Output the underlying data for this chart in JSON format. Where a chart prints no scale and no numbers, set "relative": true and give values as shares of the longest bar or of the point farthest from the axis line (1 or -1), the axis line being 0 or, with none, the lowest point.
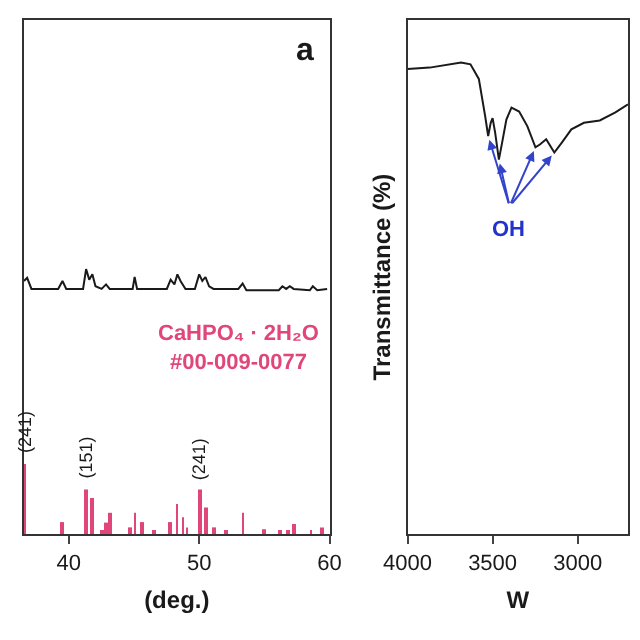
{
  "chart_data": [
    {
      "type": "line",
      "title": "a",
      "xlabel": "(deg.)",
      "relative": true,
      "xlim": [
        36.57,
        60
      ],
      "xticks": [
        40,
        50,
        60
      ],
      "tick_labels": "x",
      "legend": false,
      "series": [
        {
          "type": "line",
          "color": "#1a1a1a",
          "x": [
            36.57,
            36.81,
            37.14,
            39.19,
            39.52,
            39.81,
            41.1,
            41.33,
            41.57,
            41.81,
            42.05,
            42.52,
            42.86,
            43.14,
            44.19,
            44.9,
            45.05,
            45.24,
            47.52,
            47.81,
            48.1,
            48.33,
            48.57,
            48.95,
            49.67,
            50.0,
            50.24,
            50.48,
            50.76,
            51.1,
            53.0,
            53.33,
            53.62,
            56.1,
            56.38,
            56.67,
            56.95,
            57.24,
            58.48,
            58.71,
            59.05,
            59.81
          ],
          "values": [
            0.955,
            0.967,
            0.925,
            0.925,
            0.955,
            0.925,
            0.925,
            1.0,
            0.96,
            0.98,
            0.935,
            0.925,
            0.942,
            0.925,
            0.925,
            0.925,
            0.97,
            0.925,
            0.925,
            0.96,
            0.942,
            0.98,
            0.955,
            0.925,
            0.925,
            0.98,
            0.955,
            0.97,
            0.935,
            0.925,
            0.925,
            0.945,
            0.92,
            0.92,
            0.935,
            0.925,
            0.935,
            0.925,
            0.92,
            0.935,
            0.92,
            0.925
          ]
        },
        {
          "type": "bar",
          "name": "CaHPO₄ · 2H₂O\n#00-009-0077",
          "color": "#e0467a",
          "x": [
            36.57,
            39.52,
            41.33,
            41.81,
            42.52,
            42.86,
            43.14,
            44.67,
            45.05,
            45.62,
            46.57,
            47.76,
            48.29,
            48.76,
            49.05,
            50.05,
            50.52,
            51.1,
            52.05,
            53.33,
            55.0,
            56.19,
            56.81,
            57.29,
            58.57,
            59.43
          ],
          "values": [
            0.264,
            0.045,
            0.168,
            0.136,
            0.013,
            0.043,
            0.08,
            0.025,
            0.08,
            0.045,
            0.013,
            0.045,
            0.113,
            0.063,
            0.025,
            0.168,
            0.1,
            0.025,
            0.013,
            0.08,
            0.018,
            0.013,
            0.013,
            0.038,
            0.013,
            0.025
          ]
        }
      ],
      "annotations": [
        {
          "text": "(241)",
          "x": 36.57,
          "y": 0.264
        },
        {
          "text": "(151)",
          "x": 41.33,
          "y": 0.168
        },
        {
          "text": "(241)",
          "x": 50.05,
          "y": 0.168
        }
      ]
    },
    {
      "type": "line",
      "xlabel": "W",
      "ylabel": "Transmittance (%)",
      "relative": true,
      "xlim": [
        4000,
        2704
      ],
      "xticks": [
        4000,
        3500,
        3000
      ],
      "tick_labels": "x",
      "legend": false,
      "series": [
        {
          "color": "#1a1a1a",
          "x": [
            4000,
            3870,
            3685,
            3630,
            3581,
            3544,
            3526,
            3511,
            3500,
            3485,
            3463,
            3444,
            3419,
            3389,
            3344,
            3296,
            3248,
            3222,
            3185,
            3137,
            3093,
            3037,
            2963,
            2870,
            2778,
            2704
          ],
          "values": [
            0.986,
            0.989,
            1.0,
            0.996,
            0.965,
            0.887,
            0.844,
            0.872,
            0.882,
            0.851,
            0.794,
            0.83,
            0.879,
            0.904,
            0.896,
            0.865,
            0.82,
            0.826,
            0.837,
            0.809,
            0.83,
            0.858,
            0.872,
            0.877,
            0.894,
            0.911
          ]
        }
      ],
      "annotations": [
        "OH"
      ]
    }
  ]
}
